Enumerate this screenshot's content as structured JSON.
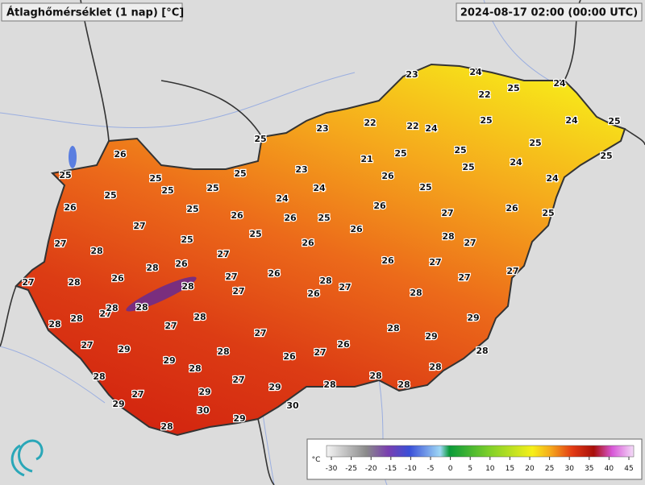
{
  "header": {
    "title": "Átlaghőmérséklet (1 nap) [°C]",
    "timestamp": "2024-08-17 02:00 (00:00 UTC)"
  },
  "stations": [
    23,
    24,
    22,
    25,
    24,
    22,
    22,
    24,
    25,
    24,
    25,
    23,
    25,
    26,
    25,
    25,
    25,
    25,
    21,
    25,
    25,
    25,
    23,
    26,
    25,
    24,
    24,
    25,
    25,
    25,
    24,
    25,
    24,
    26,
    25,
    26,
    26,
    25,
    26,
    27,
    26,
    25,
    27,
    25,
    26,
    27,
    28,
    25,
    26,
    28,
    27,
    26,
    27,
    28,
    27,
    28,
    26,
    27,
    26,
    26,
    27,
    27,
    28,
    28,
    27,
    27,
    27,
    26,
    28,
    27,
    28,
    28,
    28,
    28,
    28,
    27,
    28,
    29,
    27,
    29,
    27,
    29,
    28,
    26,
    27,
    26,
    28,
    29,
    28,
    28,
    28,
    27,
    28,
    29,
    28,
    28,
    27,
    29,
    29,
    30,
    30,
    29,
    28
  ],
  "colorbar": {
    "unit": "°C",
    "ticks": [
      -30,
      -25,
      -20,
      -15,
      -10,
      -5,
      0,
      5,
      10,
      15,
      20,
      25,
      30,
      35,
      40,
      45
    ]
  }
}
